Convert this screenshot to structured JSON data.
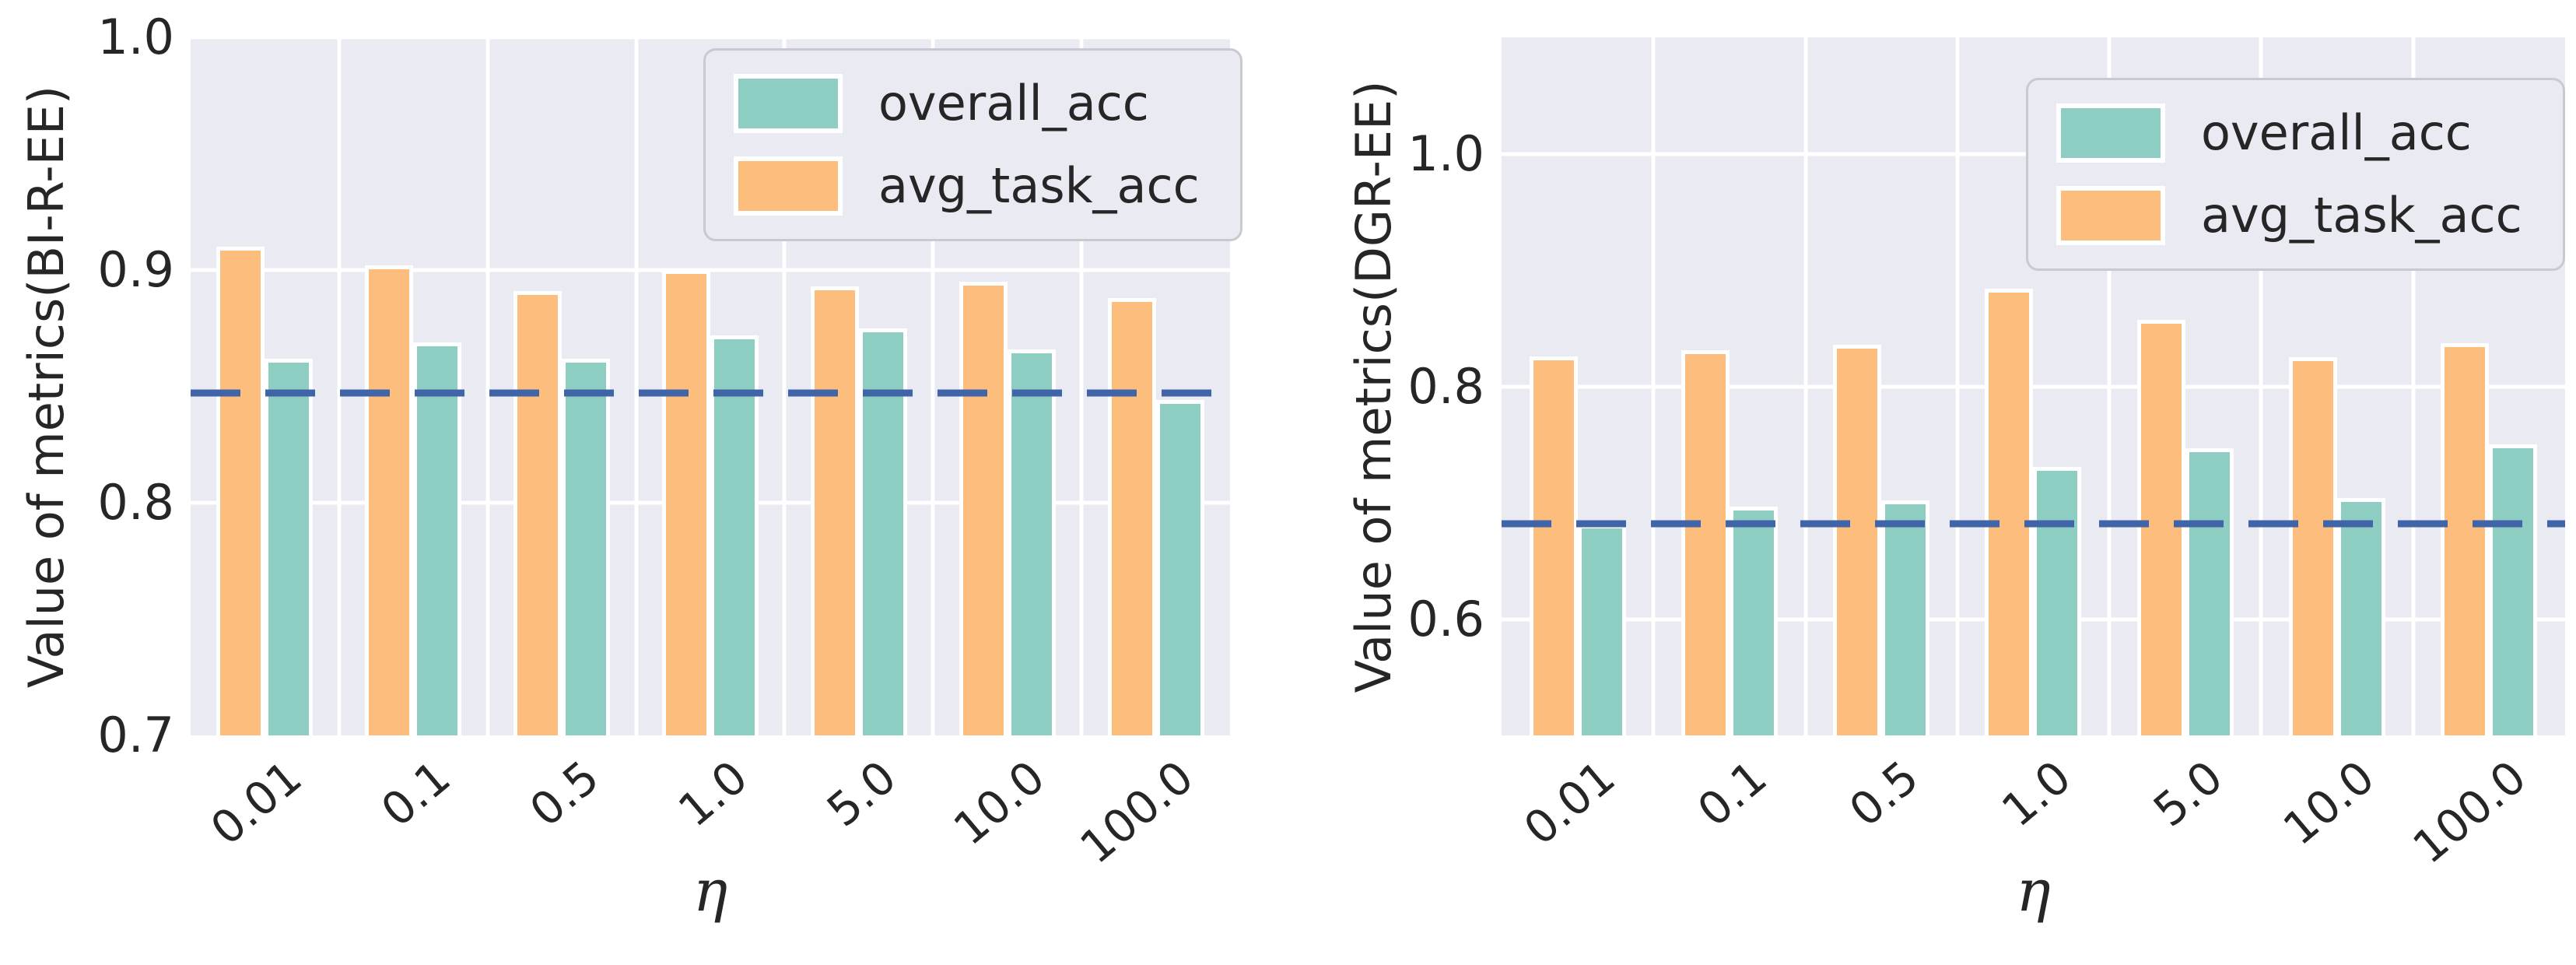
{
  "colors": {
    "overall_acc": "#8dcdc2",
    "avg_task_acc": "#fdbd7d",
    "baseline": "#3f64a7",
    "plot_background": "#eaeaf2",
    "gridline": "#ffffff",
    "text": "#262626",
    "legend_background": "#eaeaf2",
    "legend_border": "#c9c9d1"
  },
  "legend": {
    "items": [
      {
        "key": "overall_acc",
        "label": "overall_acc"
      },
      {
        "key": "avg_task_acc",
        "label": "avg_task_acc"
      }
    ]
  },
  "chart_data": [
    {
      "type": "bar",
      "title": "",
      "ylabel": "Value of metrics(BI-R-EE)",
      "xlabel": "η",
      "categories": [
        "0.01",
        "0.1",
        "0.5",
        "1.0",
        "5.0",
        "10.0",
        "100.0"
      ],
      "bar_order": [
        "avg_task_acc",
        "overall_acc"
      ],
      "series": [
        {
          "name": "overall_acc",
          "values": [
            0.862,
            0.869,
            0.862,
            0.872,
            0.875,
            0.866,
            0.844
          ]
        },
        {
          "name": "avg_task_acc",
          "values": [
            0.91,
            0.902,
            0.891,
            0.9,
            0.893,
            0.895,
            0.888
          ]
        }
      ],
      "baseline_value": 0.847,
      "ylim": [
        0.7,
        1.0
      ],
      "yticks": [
        {
          "value": 1.0,
          "label": "1.0"
        },
        {
          "value": 0.9,
          "label": "0.9"
        },
        {
          "value": 0.8,
          "label": "0.8"
        },
        {
          "value": 0.7,
          "label": "0.7"
        }
      ],
      "grid": true,
      "legend_position": "upper right"
    },
    {
      "type": "bar",
      "title": "",
      "ylabel": "Value of metrics(DGR-EE)",
      "xlabel": "η",
      "categories": [
        "0.01",
        "0.1",
        "0.5",
        "1.0",
        "5.0",
        "10.0",
        "100.0"
      ],
      "bar_order": [
        "avg_task_acc",
        "overall_acc"
      ],
      "series": [
        {
          "name": "overall_acc",
          "values": [
            0.681,
            0.697,
            0.702,
            0.731,
            0.747,
            0.704,
            0.75
          ]
        },
        {
          "name": "avg_task_acc",
          "values": [
            0.826,
            0.831,
            0.836,
            0.884,
            0.857,
            0.825,
            0.837
          ]
        }
      ],
      "baseline_value": 0.682,
      "ylim": [
        0.5,
        1.1
      ],
      "yticks": [
        {
          "value": 1.0,
          "label": "1.0"
        },
        {
          "value": 0.8,
          "label": "0.8"
        },
        {
          "value": 0.6,
          "label": "0.6"
        }
      ],
      "grid": true,
      "legend_position": "upper right"
    }
  ]
}
